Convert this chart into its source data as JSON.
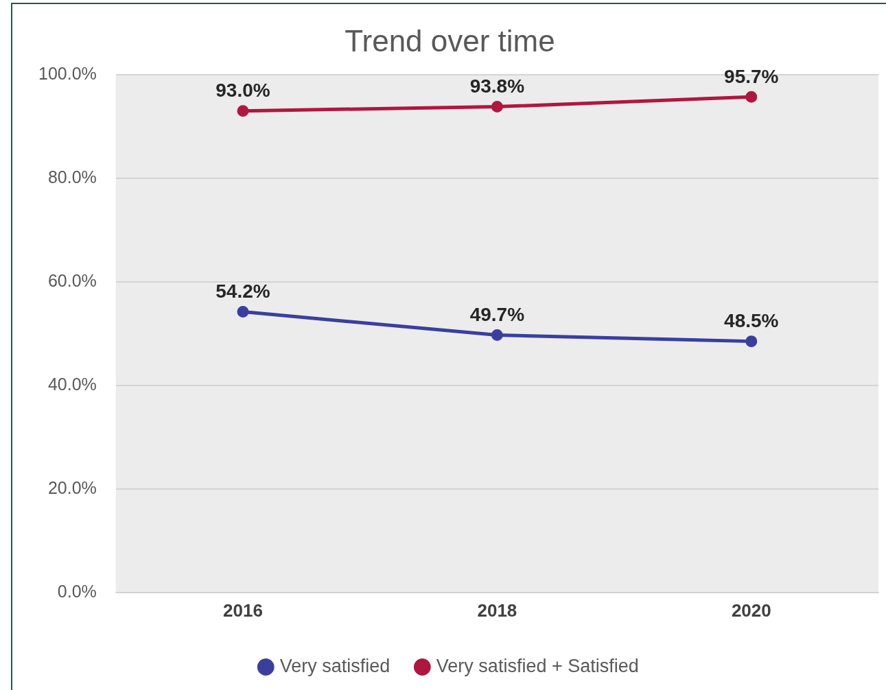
{
  "chart_data": {
    "type": "line",
    "title": "Trend over time",
    "categories": [
      "2016",
      "2018",
      "2020"
    ],
    "series": [
      {
        "name": "Very satisfied",
        "color": "#3a3f9e",
        "values": [
          54.2,
          49.7,
          48.5
        ],
        "value_labels": [
          "54.2%",
          "49.7%",
          "48.5%"
        ]
      },
      {
        "name": "Very satisfied + Satisfied",
        "color": "#b0173f",
        "values": [
          93.0,
          93.8,
          95.7
        ],
        "value_labels": [
          "93.0%",
          "93.8%",
          "95.7%"
        ]
      }
    ],
    "ylim": [
      0,
      100
    ],
    "yticks": [
      {
        "value": 0,
        "label": "0.0%"
      },
      {
        "value": 20,
        "label": "20.0%"
      },
      {
        "value": 40,
        "label": "40.0%"
      },
      {
        "value": 60,
        "label": "60.0%"
      },
      {
        "value": 80,
        "label": "80.0%"
      },
      {
        "value": 100,
        "label": "100.0%"
      }
    ],
    "grid": "y",
    "legend": "bottom",
    "marker": "circle",
    "line_style": "solid"
  }
}
